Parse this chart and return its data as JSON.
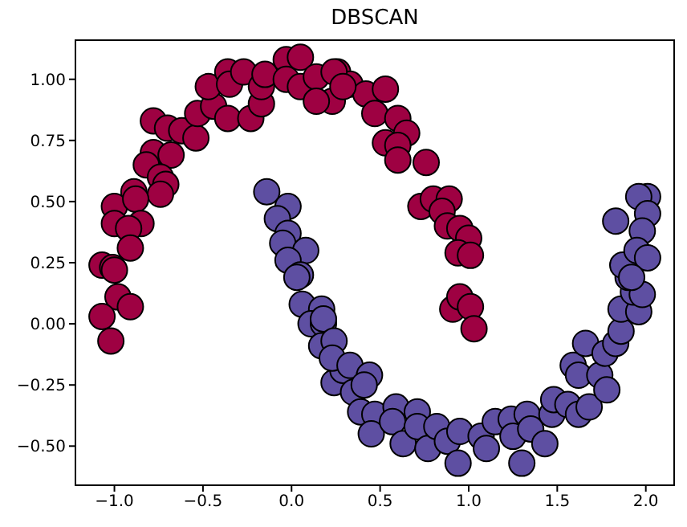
{
  "chart_data": {
    "type": "scatter",
    "title": "DBSCAN",
    "marker": "circle",
    "xlim": [
      -1.22,
      2.16
    ],
    "ylim": [
      -0.66,
      1.16
    ],
    "xticks": [
      {
        "value": -1,
        "label": "−1.0"
      },
      {
        "value": -0.5,
        "label": "−0.5"
      },
      {
        "value": 0,
        "label": "0.0"
      },
      {
        "value": 0.5,
        "label": "0.5"
      },
      {
        "value": 1,
        "label": "1.0"
      },
      {
        "value": 1.5,
        "label": "1.5"
      },
      {
        "value": 2,
        "label": "2.0"
      }
    ],
    "yticks": [
      {
        "value": -0.5,
        "label": "−0.50"
      },
      {
        "value": -0.25,
        "label": "−0.25"
      },
      {
        "value": 0,
        "label": "0.00"
      },
      {
        "value": 0.25,
        "label": "0.25"
      },
      {
        "value": 0.5,
        "label": "0.50"
      },
      {
        "value": 0.75,
        "label": "0.75"
      },
      {
        "value": 1,
        "label": "1.00"
      }
    ],
    "series": [
      {
        "color": "#9e0142",
        "x": [
          0.26,
          0.23,
          0.33,
          0.42,
          0.53,
          0.47,
          0.6,
          0.65,
          0.53,
          0.6,
          0.6,
          0.76,
          0.73,
          0.8,
          0.89,
          0.85,
          0.88,
          0.95,
          1.0,
          0.94,
          1.01,
          0.91,
          0.95,
          1.01,
          1.03,
          -0.78,
          -0.7,
          -0.62,
          -0.54,
          -0.53,
          -0.44,
          -0.36,
          -0.47,
          -0.36,
          -0.35,
          -0.27,
          -0.23,
          -0.17,
          -0.17,
          -0.15,
          -0.03,
          0.05,
          -0.03,
          0.05,
          0.14,
          0.14,
          0.24,
          0.29,
          -0.78,
          -0.68,
          -0.82,
          -0.74,
          -0.71,
          -0.74,
          -0.89,
          -1.0,
          -0.88,
          -1.0,
          -0.85,
          -0.92,
          -0.91,
          -1.07,
          -1.01,
          -1.0,
          -0.98,
          -0.91,
          -1.07,
          -1.02
        ],
        "values": [
          1.03,
          0.91,
          0.98,
          0.94,
          0.96,
          0.86,
          0.84,
          0.78,
          0.74,
          0.73,
          0.67,
          0.66,
          0.48,
          0.51,
          0.51,
          0.46,
          0.4,
          0.39,
          0.35,
          0.29,
          0.28,
          0.06,
          0.11,
          0.07,
          -0.02,
          0.83,
          0.8,
          0.79,
          0.76,
          0.86,
          0.89,
          0.84,
          0.97,
          1.03,
          0.98,
          1.03,
          0.84,
          0.9,
          0.97,
          1.02,
          1.08,
          1.09,
          1.0,
          0.97,
          1.01,
          0.91,
          1.03,
          0.97,
          0.7,
          0.69,
          0.65,
          0.6,
          0.57,
          0.53,
          0.54,
          0.48,
          0.51,
          0.41,
          0.41,
          0.39,
          0.31,
          0.24,
          0.23,
          0.22,
          0.11,
          0.07,
          0.03,
          -0.07
        ]
      },
      {
        "color": "#5e4fa2",
        "x": [
          -0.14,
          -0.02,
          -0.08,
          -0.02,
          -0.05,
          0.08,
          -0.02,
          0.05,
          0.03,
          0.06,
          0.17,
          0.11,
          0.18,
          0.17,
          0.24,
          0.29,
          0.18,
          0.24,
          0.23,
          0.33,
          0.44,
          0.35,
          0.41,
          0.39,
          0.47,
          0.45,
          0.59,
          0.57,
          0.63,
          0.71,
          0.71,
          0.77,
          0.82,
          0.88,
          0.94,
          0.95,
          1.07,
          1.1,
          1.15,
          1.24,
          1.25,
          1.3,
          1.33,
          1.35,
          1.43,
          1.47,
          1.48,
          1.56,
          1.62,
          1.68,
          1.59,
          1.62,
          1.66,
          1.74,
          1.78,
          1.77,
          1.83,
          1.86,
          1.86,
          1.96,
          1.93,
          1.98,
          1.9,
          1.87,
          2.01,
          1.96,
          2.01,
          1.83,
          1.98,
          1.95,
          2.01,
          1.92
        ],
        "values": [
          0.54,
          0.48,
          0.43,
          0.37,
          0.33,
          0.3,
          0.26,
          0.2,
          0.19,
          0.08,
          0.06,
          0.0,
          0.0,
          -0.09,
          -0.24,
          -0.19,
          0.02,
          -0.07,
          -0.14,
          -0.17,
          -0.21,
          -0.28,
          -0.25,
          -0.36,
          -0.37,
          -0.45,
          -0.34,
          -0.4,
          -0.49,
          -0.36,
          -0.42,
          -0.51,
          -0.42,
          -0.48,
          -0.57,
          -0.44,
          -0.46,
          -0.51,
          -0.4,
          -0.39,
          -0.46,
          -0.57,
          -0.37,
          -0.43,
          -0.49,
          -0.37,
          -0.31,
          -0.33,
          -0.37,
          -0.34,
          -0.17,
          -0.21,
          -0.08,
          -0.21,
          -0.27,
          -0.12,
          -0.08,
          -0.03,
          0.06,
          0.05,
          0.13,
          0.12,
          0.19,
          0.24,
          0.52,
          0.52,
          0.45,
          0.42,
          0.38,
          0.3,
          0.27,
          0.19
        ]
      }
    ]
  }
}
